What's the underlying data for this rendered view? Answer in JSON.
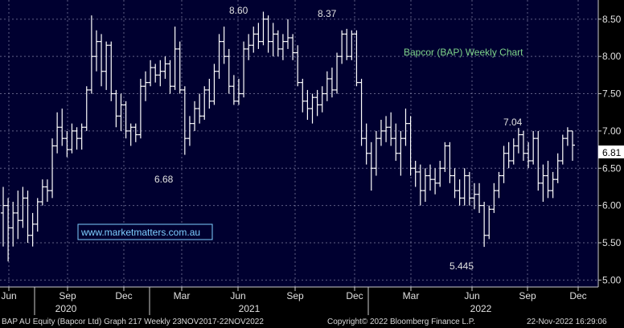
{
  "chart_data": {
    "type": "ohlc",
    "title": "Bapcor (BAP) Weekly Chart",
    "colors": {
      "background": "#000030",
      "bars": "#ffffff",
      "grid": "#8888aa",
      "title": "#7fd48a",
      "link": "#7fd0ff",
      "last_price_bg": "#ffffff"
    },
    "y_range": [
      4.95,
      8.8
    ],
    "y_ticks": [
      "5.00",
      "5.50",
      "6.00",
      "6.50",
      "7.00",
      "7.50",
      "8.00",
      "8.50"
    ],
    "x_month_labels": [
      "Jun",
      "Sep",
      "Dec",
      "Mar",
      "Jun",
      "Sep",
      "Dec",
      "Mar",
      "Jun",
      "Sep",
      "Dec"
    ],
    "x_year_labels": [
      "2020",
      "2021",
      "2022"
    ],
    "last_price": "6.81",
    "annotations": [
      "8.60",
      "8.37",
      "6.68",
      "7.04",
      "5.445"
    ],
    "watermark": "www.marketmatters.com.au",
    "series": [
      {
        "values": [
          [
            5.9,
            6.25,
            5.45,
            6.0
          ],
          [
            6.0,
            6.1,
            5.25,
            5.7
          ],
          [
            5.7,
            6.05,
            5.45,
            5.9
          ],
          [
            5.9,
            6.2,
            5.55,
            5.8
          ],
          [
            5.8,
            6.25,
            5.7,
            6.1
          ],
          [
            6.1,
            6.2,
            5.5,
            5.6
          ],
          [
            5.6,
            5.9,
            5.45,
            5.75
          ],
          [
            5.75,
            6.1,
            5.65,
            6.05
          ],
          [
            6.05,
            6.35,
            6.0,
            6.25
          ],
          [
            6.25,
            6.35,
            6.05,
            6.2
          ],
          [
            6.2,
            6.9,
            6.1,
            6.8
          ],
          [
            6.8,
            7.25,
            6.7,
            7.05
          ],
          [
            7.05,
            7.3,
            6.8,
            6.9
          ],
          [
            6.9,
            7.0,
            6.65,
            6.75
          ],
          [
            6.75,
            7.1,
            6.7,
            7.0
          ],
          [
            7.0,
            7.05,
            6.75,
            6.9
          ],
          [
            6.9,
            7.1,
            6.75,
            7.05
          ],
          [
            7.05,
            7.6,
            7.0,
            7.55
          ],
          [
            7.55,
            8.55,
            7.5,
            8.0
          ],
          [
            8.0,
            8.35,
            7.8,
            8.2
          ],
          [
            8.2,
            8.3,
            7.6,
            7.8
          ],
          [
            7.8,
            8.2,
            7.55,
            8.15
          ],
          [
            8.15,
            8.2,
            7.4,
            7.5
          ],
          [
            7.5,
            7.55,
            7.05,
            7.2
          ],
          [
            7.2,
            7.5,
            7.0,
            7.35
          ],
          [
            7.35,
            7.4,
            6.9,
            7.0
          ],
          [
            7.0,
            7.1,
            6.8,
            7.05
          ],
          [
            7.05,
            7.1,
            6.85,
            6.95
          ],
          [
            6.95,
            7.7,
            6.9,
            7.6
          ],
          [
            7.6,
            7.8,
            7.4,
            7.65
          ],
          [
            7.65,
            7.95,
            7.6,
            7.85
          ],
          [
            7.85,
            7.9,
            7.65,
            7.75
          ],
          [
            7.75,
            7.95,
            7.6,
            7.8
          ],
          [
            7.8,
            8.0,
            7.7,
            7.9
          ],
          [
            7.9,
            7.95,
            7.5,
            7.6
          ],
          [
            7.6,
            8.4,
            7.55,
            8.1
          ],
          [
            8.1,
            8.2,
            7.5,
            7.55
          ],
          [
            7.55,
            7.6,
            6.68,
            6.9
          ],
          [
            6.9,
            7.2,
            6.8,
            7.1
          ],
          [
            7.1,
            7.4,
            7.0,
            7.3
          ],
          [
            7.3,
            7.5,
            7.1,
            7.2
          ],
          [
            7.2,
            7.6,
            7.15,
            7.55
          ],
          [
            7.55,
            7.7,
            7.3,
            7.4
          ],
          [
            7.4,
            7.9,
            7.35,
            7.8
          ],
          [
            7.8,
            8.3,
            7.7,
            8.2
          ],
          [
            8.2,
            8.4,
            7.9,
            8.0
          ],
          [
            8.0,
            8.1,
            7.5,
            7.6
          ],
          [
            7.6,
            7.75,
            7.35,
            7.4
          ],
          [
            7.4,
            7.7,
            7.35,
            7.5
          ],
          [
            7.5,
            8.2,
            7.45,
            8.1
          ],
          [
            8.1,
            8.3,
            7.95,
            8.15
          ],
          [
            8.15,
            8.4,
            8.05,
            8.3
          ],
          [
            8.3,
            8.45,
            8.1,
            8.2
          ],
          [
            8.2,
            8.6,
            8.15,
            8.5
          ],
          [
            8.5,
            8.55,
            8.05,
            8.2
          ],
          [
            8.2,
            8.45,
            8.0,
            8.3
          ],
          [
            8.3,
            8.35,
            8.0,
            8.1
          ],
          [
            8.1,
            8.3,
            7.95,
            8.2
          ],
          [
            8.2,
            8.5,
            8.1,
            8.25
          ],
          [
            8.25,
            8.3,
            7.95,
            8.05
          ],
          [
            8.05,
            8.15,
            7.6,
            7.65
          ],
          [
            7.65,
            7.7,
            7.25,
            7.4
          ],
          [
            7.4,
            7.55,
            7.15,
            7.3
          ],
          [
            7.3,
            7.5,
            7.1,
            7.45
          ],
          [
            7.45,
            7.55,
            7.2,
            7.35
          ],
          [
            7.35,
            7.6,
            7.25,
            7.5
          ],
          [
            7.5,
            7.8,
            7.4,
            7.7
          ],
          [
            7.7,
            7.85,
            7.45,
            7.55
          ],
          [
            7.55,
            8.05,
            7.5,
            8.0
          ],
          [
            8.0,
            8.35,
            7.9,
            8.3
          ],
          [
            8.3,
            8.37,
            7.95,
            8.0
          ],
          [
            8.0,
            8.35,
            7.95,
            8.3
          ],
          [
            8.3,
            8.35,
            7.6,
            7.65
          ],
          [
            7.65,
            7.7,
            6.8,
            6.9
          ],
          [
            6.9,
            7.1,
            6.55,
            6.7
          ],
          [
            6.7,
            6.85,
            6.2,
            6.5
          ],
          [
            6.5,
            7.0,
            6.4,
            6.9
          ],
          [
            6.9,
            7.15,
            6.8,
            7.0
          ],
          [
            7.0,
            7.2,
            6.85,
            7.05
          ],
          [
            7.05,
            7.25,
            6.8,
            6.9
          ],
          [
            6.9,
            7.1,
            6.6,
            6.7
          ],
          [
            6.7,
            7.0,
            6.4,
            6.9
          ],
          [
            6.9,
            7.3,
            6.8,
            7.1
          ],
          [
            7.1,
            7.2,
            6.4,
            6.5
          ],
          [
            6.5,
            6.6,
            6.25,
            6.45
          ],
          [
            6.45,
            6.55,
            6.0,
            6.2
          ],
          [
            6.2,
            6.5,
            6.05,
            6.4
          ],
          [
            6.4,
            6.55,
            6.2,
            6.35
          ],
          [
            6.35,
            6.5,
            6.15,
            6.3
          ],
          [
            6.3,
            6.6,
            6.25,
            6.5
          ],
          [
            6.5,
            6.85,
            6.45,
            6.8
          ],
          [
            6.8,
            6.85,
            6.3,
            6.4
          ],
          [
            6.4,
            6.5,
            6.1,
            6.2
          ],
          [
            6.2,
            6.35,
            6.0,
            6.1
          ],
          [
            6.1,
            6.5,
            6.0,
            6.4
          ],
          [
            6.4,
            6.45,
            6.0,
            6.1
          ],
          [
            6.1,
            6.3,
            5.95,
            6.15
          ],
          [
            6.15,
            6.3,
            5.9,
            6.0
          ],
          [
            6.0,
            6.05,
            5.445,
            5.6
          ],
          [
            5.6,
            6.0,
            5.55,
            5.95
          ],
          [
            5.95,
            6.3,
            5.9,
            6.2
          ],
          [
            6.2,
            6.45,
            6.1,
            6.4
          ],
          [
            6.4,
            6.8,
            6.3,
            6.7
          ],
          [
            6.7,
            6.85,
            6.5,
            6.6
          ],
          [
            6.6,
            6.9,
            6.55,
            6.8
          ],
          [
            6.8,
            7.04,
            6.7,
            6.95
          ],
          [
            6.95,
            7.0,
            6.6,
            6.7
          ],
          [
            6.7,
            6.85,
            6.5,
            6.6
          ],
          [
            6.6,
            7.0,
            6.55,
            6.9
          ],
          [
            6.9,
            7.0,
            6.2,
            6.3
          ],
          [
            6.3,
            6.55,
            6.05,
            6.4
          ],
          [
            6.4,
            6.6,
            6.1,
            6.2
          ],
          [
            6.2,
            6.45,
            6.1,
            6.35
          ],
          [
            6.35,
            6.7,
            6.3,
            6.6
          ],
          [
            6.6,
            6.95,
            6.55,
            6.9
          ],
          [
            6.9,
            7.05,
            6.8,
            7.0
          ],
          [
            7.0,
            7.0,
            6.6,
            6.81
          ]
        ]
      }
    ]
  },
  "footer": {
    "left": "BAP AU Equity (Bapcor Ltd) Graph 217  Weekly 23NOV2017-22NOV2022",
    "center": "Copyright© 2022 Bloomberg Finance L.P.",
    "right": "22-Nov-2022 16:29:06"
  }
}
